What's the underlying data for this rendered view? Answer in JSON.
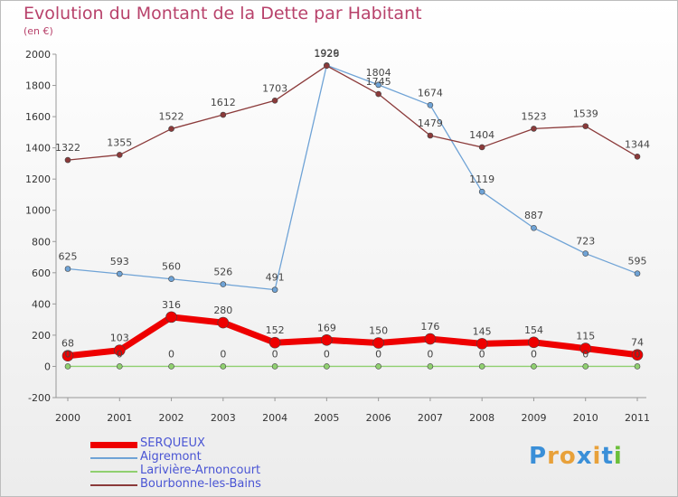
{
  "chart_data": {
    "type": "line",
    "title": "Evolution du Montant de la Dette par Habitant",
    "subtitle": "(en €)",
    "x": [
      "2000",
      "2001",
      "2002",
      "2003",
      "2004",
      "2005",
      "2006",
      "2007",
      "2008",
      "2009",
      "2010",
      "2011"
    ],
    "ylim": [
      -200,
      2000
    ],
    "yticks": [
      -200,
      0,
      200,
      400,
      600,
      800,
      1000,
      1200,
      1400,
      1600,
      1800,
      2000
    ],
    "grid": false,
    "legend_placement": "bottom-left",
    "series": [
      {
        "name": "SERQUEUX",
        "color": "#ee0000",
        "values": [
          68,
          103,
          316,
          280,
          152,
          169,
          150,
          176,
          145,
          154,
          115,
          74
        ]
      },
      {
        "name": "Aigremont",
        "color": "#6fa3d6",
        "values": [
          625,
          593,
          560,
          526,
          491,
          1929,
          1804,
          1674,
          1119,
          887,
          723,
          595
        ]
      },
      {
        "name": "Larivière-Arnoncourt",
        "color": "#90d070",
        "values": [
          0,
          0,
          0,
          0,
          0,
          0,
          0,
          0,
          0,
          0,
          0,
          0
        ]
      },
      {
        "name": "Bourbonne-les-Bains",
        "color": "#8b3a3a",
        "values": [
          1322,
          1355,
          1522,
          1612,
          1703,
          1926,
          1745,
          1479,
          1404,
          1523,
          1539,
          1344
        ]
      }
    ]
  },
  "logo": {
    "text": "Proxiti",
    "colors": [
      "#3a8fd8",
      "#e8a13a",
      "#e8a13a",
      "#3a8fd8",
      "#e8a13a",
      "#3a8fd8",
      "#6bbf3a"
    ]
  }
}
